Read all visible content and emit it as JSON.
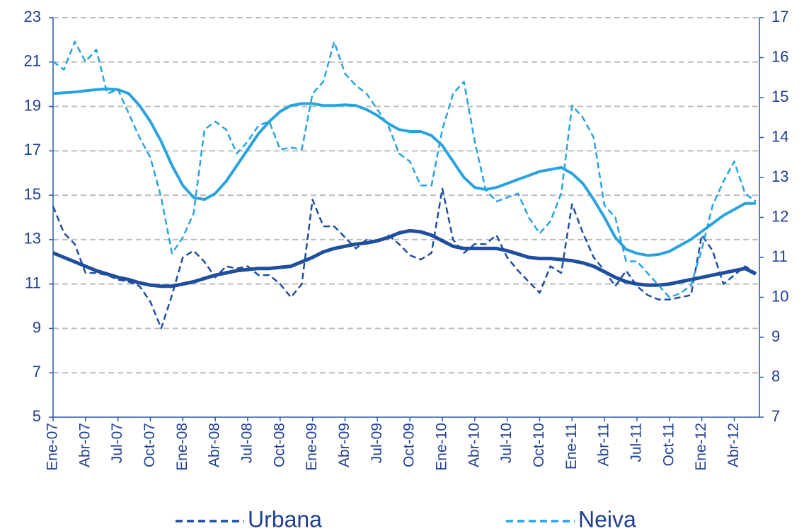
{
  "chart_data": {
    "type": "line",
    "categories": [
      "Ene-07",
      null,
      null,
      "Abr-07",
      null,
      null,
      "Jul-07",
      null,
      null,
      "Oct-07",
      null,
      null,
      "Ene-08",
      null,
      null,
      "Abr-08",
      null,
      null,
      "Jul-08",
      null,
      null,
      "Oct-08",
      null,
      null,
      "Ene-09",
      null,
      null,
      "Abr-09",
      null,
      null,
      "Jul-09",
      null,
      null,
      "Oct-09",
      null,
      null,
      "Ene-10",
      null,
      null,
      "Abr-10",
      null,
      null,
      "Jul-10",
      null,
      null,
      "Oct-10",
      null,
      null,
      "Ene-11",
      null,
      null,
      "Abr-11",
      null,
      null,
      "Jul-11",
      null,
      null,
      "Oct-11",
      null,
      null,
      "Ene-12",
      null,
      null,
      "Abr-12",
      null,
      null
    ],
    "series": [
      {
        "name": "Urbana",
        "color": "#1f4e9e",
        "style": "dashed",
        "values": [
          14.5,
          13.3,
          12.8,
          11.5,
          11.5,
          11.4,
          11.2,
          11.1,
          10.9,
          10.2,
          9.0,
          10.5,
          12.2,
          12.5,
          12.0,
          11.3,
          11.8,
          11.7,
          11.8,
          11.4,
          11.4,
          11.0,
          10.4,
          11.0,
          14.8,
          13.6,
          13.6,
          13.1,
          12.6,
          13.0,
          12.9,
          13.2,
          12.8,
          12.3,
          12.1,
          12.4,
          15.3,
          13.0,
          12.4,
          12.8,
          12.8,
          13.2,
          12.2,
          11.6,
          11.1,
          10.6,
          11.8,
          11.5,
          14.6,
          13.3,
          12.2,
          11.6,
          10.9,
          11.6,
          10.9,
          10.5,
          10.3,
          10.3,
          10.4,
          10.5,
          13.2,
          12.5,
          11.0,
          11.4,
          11.8,
          11.5
        ]
      },
      {
        "color": "#1f4e9e",
        "style": "solid",
        "values": [
          12.4,
          12.2,
          12.0,
          11.8,
          11.6,
          11.45,
          11.3,
          11.2,
          11.05,
          10.95,
          10.9,
          10.9,
          11.0,
          11.1,
          11.25,
          11.4,
          11.5,
          11.6,
          11.65,
          11.7,
          11.7,
          11.75,
          11.8,
          12.0,
          12.2,
          12.45,
          12.6,
          12.7,
          12.8,
          12.85,
          12.95,
          13.1,
          13.3,
          13.4,
          13.35,
          13.2,
          12.95,
          12.7,
          12.6,
          12.6,
          12.6,
          12.6,
          12.5,
          12.35,
          12.2,
          12.15,
          12.15,
          12.1,
          12.05,
          11.95,
          11.8,
          11.55,
          11.3,
          11.1,
          11.0,
          10.95,
          10.95,
          11.0,
          11.1,
          11.2,
          11.3,
          11.4,
          11.5,
          11.6,
          11.7,
          11.45
        ]
      },
      {
        "name": "Neiva",
        "color": "#29a3de",
        "style": "dashed",
        "axis": "y2",
        "values": [
          15.9,
          15.7,
          16.4,
          15.9,
          16.2,
          15.1,
          15.2,
          14.6,
          14.0,
          13.5,
          12.5,
          11.1,
          11.5,
          12.1,
          14.2,
          14.4,
          14.2,
          13.6,
          13.9,
          14.3,
          14.4,
          13.7,
          13.75,
          13.7,
          15.1,
          15.4,
          16.4,
          15.6,
          15.3,
          15.1,
          14.7,
          14.3,
          13.6,
          13.4,
          12.8,
          12.8,
          14.2,
          15.1,
          15.4,
          13.9,
          12.7,
          12.4,
          12.5,
          12.6,
          12.0,
          11.6,
          11.9,
          12.6,
          14.8,
          14.5,
          14.0,
          12.3,
          12.0,
          10.9,
          10.9,
          10.6,
          10.3,
          10.0,
          10.1,
          10.3,
          11.2,
          12.3,
          12.9,
          13.4,
          12.6,
          12.4
        ]
      },
      {
        "color": "#29a3de",
        "style": "solid",
        "axis": "y2",
        "values": [
          15.1,
          15.12,
          15.14,
          15.17,
          15.2,
          15.22,
          15.2,
          15.1,
          14.8,
          14.4,
          13.9,
          13.3,
          12.8,
          12.5,
          12.45,
          12.6,
          12.9,
          13.3,
          13.7,
          14.1,
          14.4,
          14.65,
          14.8,
          14.85,
          14.85,
          14.8,
          14.8,
          14.82,
          14.8,
          14.7,
          14.55,
          14.35,
          14.2,
          14.15,
          14.15,
          14.05,
          13.8,
          13.4,
          13.0,
          12.75,
          12.7,
          12.75,
          12.85,
          12.95,
          13.05,
          13.15,
          13.2,
          13.25,
          13.1,
          12.85,
          12.45,
          12.0,
          11.5,
          11.2,
          11.1,
          11.05,
          11.07,
          11.15,
          11.3,
          11.45,
          11.65,
          11.85,
          12.05,
          12.2,
          12.35,
          12.35
        ]
      }
    ],
    "ylim": [
      5,
      23
    ],
    "yticks": [
      5,
      7,
      9,
      11,
      13,
      15,
      17,
      19,
      21,
      23
    ],
    "y2lim": [
      7,
      17
    ],
    "y2ticks": [
      7,
      8,
      9,
      10,
      11,
      12,
      13,
      14,
      15,
      16,
      17
    ],
    "grid": true,
    "legend": "bottom"
  }
}
